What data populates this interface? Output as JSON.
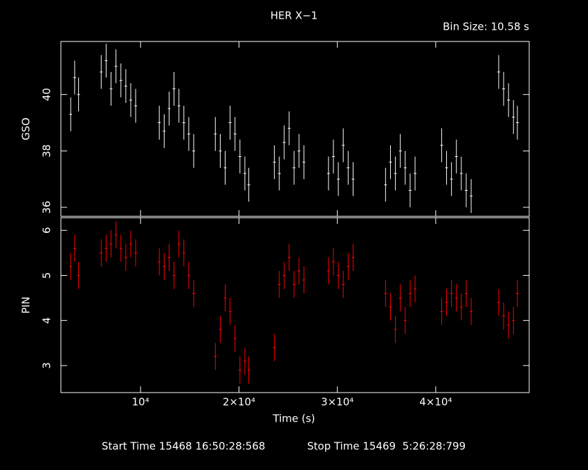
{
  "chart_data": [
    {
      "type": "errorbar",
      "title": "HER X−1",
      "subtitle": "Bin Size: 10.58 s",
      "ylabel": "GSO",
      "color": "#ffffff",
      "x": [
        2900,
        3300,
        3700,
        6000,
        6500,
        7000,
        7500,
        8000,
        8500,
        9000,
        9500,
        11900,
        12400,
        12900,
        13400,
        13900,
        14400,
        14900,
        15400,
        17600,
        18100,
        18600,
        19100,
        19600,
        20100,
        20600,
        21000,
        23600,
        24100,
        24600,
        25100,
        25600,
        26100,
        26600,
        29100,
        29600,
        30100,
        30600,
        31100,
        31600,
        34900,
        35400,
        35900,
        36400,
        36900,
        37400,
        37900,
        40600,
        41100,
        41600,
        42100,
        42600,
        43100,
        43600,
        46400,
        46900,
        47400,
        47900,
        48300
      ],
      "values": [
        39.3,
        40.6,
        40.0,
        40.8,
        41.2,
        40.2,
        41.0,
        40.5,
        40.3,
        39.8,
        39.6,
        39.0,
        38.7,
        39.5,
        40.2,
        39.6,
        39.0,
        38.6,
        38.0,
        38.6,
        38.0,
        37.4,
        39.0,
        38.6,
        37.8,
        37.2,
        36.8,
        37.6,
        37.2,
        38.3,
        38.8,
        37.4,
        38.0,
        37.6,
        37.2,
        37.8,
        37.0,
        38.2,
        37.4,
        37.0,
        36.8,
        37.6,
        37.2,
        38.0,
        37.4,
        36.6,
        37.2,
        38.2,
        37.4,
        37.0,
        37.8,
        37.2,
        36.6,
        36.4,
        40.8,
        40.2,
        39.8,
        39.2,
        39.0
      ],
      "error": 0.6,
      "xlim": [
        1900,
        49500
      ],
      "xticks": [
        10000,
        20000,
        30000,
        40000
      ],
      "ylim": [
        35.68,
        41.88
      ],
      "yticks": [
        36,
        38,
        40
      ]
    },
    {
      "type": "errorbar",
      "ylabel": "PIN",
      "xlabel": "Time (s)",
      "color": "#ff0000",
      "annotations": [
        "Start Time 15468 16:50:28:568",
        "Stop Time 15469  5:26:28:799"
      ],
      "x": [
        2900,
        3300,
        3700,
        6000,
        6500,
        7000,
        7500,
        8000,
        8500,
        9000,
        9500,
        11900,
        12400,
        12900,
        13400,
        13900,
        14400,
        14900,
        15400,
        17600,
        18100,
        18600,
        19100,
        19600,
        20100,
        20600,
        21000,
        23600,
        24100,
        24600,
        25100,
        25600,
        26100,
        26600,
        29100,
        29600,
        30100,
        30600,
        31100,
        31600,
        34900,
        35400,
        35900,
        36400,
        36900,
        37400,
        37900,
        40600,
        41100,
        41600,
        42100,
        42600,
        43100,
        43600,
        46400,
        46900,
        47400,
        47900,
        48300
      ],
      "values": [
        5.2,
        5.6,
        5.0,
        5.5,
        5.6,
        5.7,
        5.9,
        5.6,
        5.4,
        5.7,
        5.5,
        5.3,
        5.2,
        5.4,
        5.0,
        5.7,
        5.5,
        5.0,
        4.6,
        3.2,
        3.8,
        4.5,
        4.2,
        3.6,
        2.9,
        3.1,
        2.9,
        3.4,
        4.8,
        5.0,
        5.4,
        4.8,
        5.1,
        4.9,
        5.1,
        5.3,
        5.0,
        4.8,
        5.2,
        5.4,
        4.6,
        4.3,
        3.8,
        4.5,
        4.0,
        4.6,
        4.7,
        4.2,
        4.4,
        4.6,
        4.5,
        4.3,
        4.6,
        4.2,
        4.4,
        4.1,
        3.9,
        4.0,
        4.6
      ],
      "error": 0.3,
      "xlim": [
        1900,
        49500
      ],
      "xticks": [
        {
          "value": 10000,
          "label": "10⁴"
        },
        {
          "value": 20000,
          "label": "2×10⁴"
        },
        {
          "value": 30000,
          "label": "3×10⁴"
        },
        {
          "value": 40000,
          "label": "4×10⁴"
        }
      ],
      "ylim": [
        2.4,
        6.28
      ],
      "yticks": [
        3,
        4,
        5,
        6
      ]
    }
  ]
}
